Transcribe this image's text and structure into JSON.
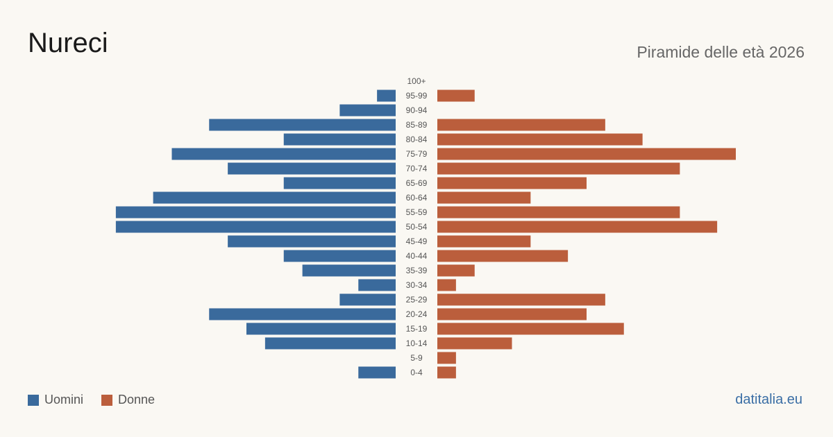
{
  "header": {
    "title": "Nureci",
    "subtitle": "Piramide delle età 2026"
  },
  "footer": {
    "brand": "datitalia.eu"
  },
  "colors": {
    "male": "#3a6a9c",
    "female": "#bb5e3c",
    "background": "#faf8f3",
    "label": "#555555"
  },
  "chart_data": {
    "type": "bar",
    "orientation": "horizontal-population-pyramid",
    "categories": [
      "100+",
      "95-99",
      "90-94",
      "85-89",
      "80-84",
      "75-79",
      "70-74",
      "65-69",
      "60-64",
      "55-59",
      "50-54",
      "45-49",
      "40-44",
      "35-39",
      "30-34",
      "25-29",
      "20-24",
      "15-19",
      "10-14",
      "5-9",
      "0-4"
    ],
    "series": [
      {
        "name": "Uomini",
        "side": "left",
        "values": [
          0,
          1,
          3,
          10,
          6,
          12,
          9,
          6,
          13,
          15,
          15,
          9,
          6,
          5,
          2,
          3,
          10,
          8,
          7,
          0,
          2
        ]
      },
      {
        "name": "Donne",
        "side": "right",
        "values": [
          0,
          2,
          0,
          9,
          11,
          16,
          13,
          8,
          5,
          13,
          15,
          5,
          7,
          2,
          1,
          9,
          8,
          10,
          4,
          1,
          1
        ]
      }
    ],
    "xlim": [
      0,
      16
    ],
    "grid": false,
    "legend": "bottom-left"
  }
}
